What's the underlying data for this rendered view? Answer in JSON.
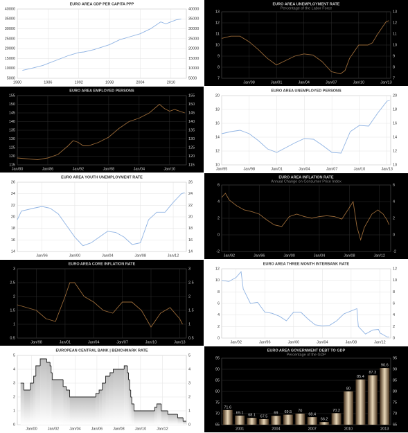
{
  "chart_data": [
    {
      "type": "line",
      "title": "EURO AREA GDP PER CAPITA PPP",
      "background": "#ffffff",
      "color": "#8fb3e3",
      "grid": true,
      "x": [
        1981,
        1983,
        1985,
        1986,
        1988,
        1990,
        1992,
        1993,
        1995,
        1998,
        2000,
        2002,
        2004,
        2006,
        2008,
        2009,
        2010,
        2011,
        2012
      ],
      "values": [
        9000,
        10200,
        11500,
        12500,
        14500,
        16500,
        18000,
        18300,
        19500,
        22000,
        24500,
        26000,
        27500,
        30000,
        33500,
        32500,
        33500,
        34500,
        35000
      ],
      "xlim": [
        1980,
        2013
      ],
      "xticks": [
        1980,
        1986,
        1992,
        1998,
        2004,
        2010
      ],
      "ylim": [
        5000,
        40000
      ],
      "yticks": [
        5000,
        10000,
        15000,
        20000,
        25000,
        30000,
        35000,
        40000
      ]
    },
    {
      "type": "line",
      "title": "EURO AREA UNEMPLOYMENT RATE",
      "subtitle": "Percentage of the Labor Force",
      "background": "#000000",
      "color": "#9a6a38",
      "grid": true,
      "x": [
        1995,
        1996,
        1997,
        1998,
        1999,
        2000,
        2001,
        2002,
        2003,
        2004,
        2005,
        2006,
        2007,
        2008,
        2008.5,
        2009,
        2010,
        2011,
        2011.5,
        2012,
        2012.5,
        2013,
        2013.3
      ],
      "values": [
        10.6,
        10.8,
        10.8,
        10.3,
        9.6,
        8.8,
        8.2,
        8.6,
        9.0,
        9.2,
        9.1,
        8.5,
        7.6,
        7.4,
        7.7,
        8.8,
        10.0,
        10.0,
        10.2,
        10.9,
        11.5,
        12.1,
        12.2
      ],
      "xlim": [
        1995,
        2013.5
      ],
      "xticks": [
        {
          "value": 1998,
          "label": "Jan/98"
        },
        {
          "value": 2001,
          "label": "Jan/01"
        },
        {
          "value": 2004,
          "label": "Jan/04"
        },
        {
          "value": 2007,
          "label": "Jan/07"
        },
        {
          "value": 2010,
          "label": "Jan/10"
        },
        {
          "value": 2013,
          "label": "Jan/13"
        }
      ],
      "ylim": [
        7,
        13
      ],
      "yticks": [
        7,
        8,
        9,
        10,
        11,
        12,
        13
      ]
    },
    {
      "type": "line",
      "title": "EURO AREA EMPLOYED PERSONS",
      "background": "#000000",
      "color": "#9a6a38",
      "grid": true,
      "x": [
        1980,
        1982,
        1984,
        1986,
        1988,
        1990,
        1991,
        1992,
        1993,
        1994,
        1996,
        1998,
        2000,
        2002,
        2004,
        2006,
        2008,
        2009,
        2010,
        2011,
        2012,
        2013
      ],
      "values": [
        119,
        118.5,
        118,
        119,
        121,
        126,
        129,
        128,
        126,
        126,
        128,
        131,
        136,
        140,
        142,
        145,
        150,
        147.5,
        146,
        147,
        146,
        145
      ],
      "xlim": [
        1980,
        2013.3
      ],
      "xticks": [
        {
          "value": 1980,
          "label": "Jan/80"
        },
        {
          "value": 1986,
          "label": "Jan/86"
        },
        {
          "value": 1992,
          "label": "Jan/92"
        },
        {
          "value": 1998,
          "label": "Jan/98"
        },
        {
          "value": 2004,
          "label": "Jan/04"
        },
        {
          "value": 2010,
          "label": "Jan/10"
        }
      ],
      "ylim": [
        115,
        155
      ],
      "yticks": [
        115,
        120,
        125,
        130,
        135,
        140,
        145,
        150,
        155
      ]
    },
    {
      "type": "line",
      "title": "EURO AREA UNEMPLOYED PERSONS",
      "background": "#ffffff",
      "color": "#8fb3e3",
      "grid": true,
      "x": [
        1995,
        1996,
        1997,
        1998,
        1999,
        2000,
        2001,
        2002,
        2003,
        2004,
        2005,
        2006,
        2007,
        2008,
        2009,
        2010,
        2011,
        2012,
        2013,
        2013.3
      ],
      "values": [
        14.5,
        14.8,
        15.0,
        14.5,
        13.5,
        12.3,
        11.8,
        12.5,
        13.2,
        13.8,
        13.7,
        12.8,
        11.8,
        11.7,
        14.8,
        15.7,
        15.6,
        17.5,
        19.2,
        19.3
      ],
      "xlim": [
        1995,
        2013.4
      ],
      "xticks": [
        {
          "value": 1995,
          "label": "Jan/95"
        },
        {
          "value": 1998,
          "label": "Jan/98"
        },
        {
          "value": 2001,
          "label": "Jan/01"
        },
        {
          "value": 2004,
          "label": "Jan/04"
        },
        {
          "value": 2007,
          "label": "Jan/07"
        },
        {
          "value": 2010,
          "label": "Jan/10"
        },
        {
          "value": 2013,
          "label": "Jan/13"
        }
      ],
      "ylim": [
        10,
        20
      ],
      "yticks": [
        10,
        12,
        14,
        16,
        18,
        20
      ]
    },
    {
      "type": "line",
      "title": "EURO AREA YOUTH UNEMPLOYMENT RATE",
      "background": "#ffffff",
      "color": "#8fb3e3",
      "grid": true,
      "x": [
        1993,
        1993.5,
        1995,
        1996,
        1997,
        1998,
        1999,
        2000,
        2001,
        2002,
        2003,
        2004,
        2005,
        2006,
        2007,
        2008,
        2009,
        2010,
        2011,
        2012,
        2013,
        2013.4
      ],
      "values": [
        19.5,
        21,
        21.5,
        21.8,
        21.5,
        20.5,
        18.5,
        16.5,
        15.0,
        15.5,
        16.5,
        17.5,
        17.3,
        16.5,
        15.2,
        15.5,
        19.5,
        20.8,
        20.8,
        22.5,
        24,
        24.2
      ],
      "xlim": [
        1993,
        2013.6
      ],
      "xticks": [
        {
          "value": 1996,
          "label": "Jan/96"
        },
        {
          "value": 2000,
          "label": "Jan/00"
        },
        {
          "value": 2004,
          "label": "Jan/04"
        },
        {
          "value": 2008,
          "label": "Jan/08"
        },
        {
          "value": 2012,
          "label": "Jan/12"
        }
      ],
      "ylim": [
        14,
        26
      ],
      "yticks": [
        14,
        16,
        18,
        20,
        22,
        24,
        26
      ]
    },
    {
      "type": "line",
      "title": "EURO AREA INFLATION RATE",
      "subtitle": "Annual Change on Consumer Price Index",
      "background": "#000000",
      "color": "#9a6a38",
      "grid": true,
      "x": [
        1991,
        1991.5,
        1992,
        1993,
        1994,
        1995,
        1996,
        1997,
        1998,
        1999,
        2000,
        2001,
        2002,
        2003,
        2004,
        2005,
        2006,
        2007,
        2007.8,
        2008.5,
        2009,
        2009.5,
        2010,
        2011,
        2011.8,
        2012.5,
        2013,
        2013.3
      ],
      "values": [
        4.5,
        5,
        4.2,
        3.5,
        3,
        2.8,
        2.5,
        1.8,
        1.2,
        1.0,
        2.2,
        2.5,
        2.2,
        2.0,
        2.2,
        2.3,
        2.2,
        1.9,
        3.0,
        4.0,
        1.0,
        -0.6,
        0.9,
        2.5,
        3.0,
        2.5,
        1.8,
        1.2
      ],
      "xlim": [
        1991,
        2013.5
      ],
      "xticks": [
        {
          "value": 1992,
          "label": "Jan/92"
        },
        {
          "value": 1996,
          "label": "Jan/96"
        },
        {
          "value": 2000,
          "label": "Jan/00"
        },
        {
          "value": 2004,
          "label": "Jan/04"
        },
        {
          "value": 2008,
          "label": "Jan/08"
        },
        {
          "value": 2012,
          "label": "Jan/12"
        }
      ],
      "ylim": [
        -2,
        6
      ],
      "yticks": [
        -2,
        0,
        2,
        4,
        6
      ]
    },
    {
      "type": "line",
      "title": "EURO AREA CORE INFLATION RATE",
      "background": "#000000",
      "color": "#9a6a38",
      "grid": true,
      "x": [
        1996,
        1997,
        1998,
        1999,
        2000,
        2001,
        2001.5,
        2002,
        2003,
        2004,
        2005,
        2006,
        2007,
        2008,
        2009,
        2010,
        2011,
        2012,
        2013,
        2013.3
      ],
      "values": [
        1.7,
        1.6,
        1.5,
        1.2,
        1.1,
        2.0,
        2.5,
        2.5,
        2.0,
        1.8,
        1.5,
        1.4,
        1.8,
        1.8,
        1.5,
        0.9,
        1.4,
        1.6,
        1.2,
        1.0
      ],
      "xlim": [
        1996,
        2013.7
      ],
      "xticks": [
        {
          "value": 1998,
          "label": "Jan/98"
        },
        {
          "value": 2001,
          "label": "Jan/01"
        },
        {
          "value": 2004,
          "label": "Jan/04"
        },
        {
          "value": 2007,
          "label": "Jan/07"
        },
        {
          "value": 2010,
          "label": "Jan/10"
        },
        {
          "value": 2013,
          "label": "Jan/13"
        }
      ],
      "ylim": [
        0.5,
        3
      ],
      "yticks": [
        0.5,
        1,
        1.5,
        2,
        2.5,
        3
      ]
    },
    {
      "type": "line",
      "title": "EURO AREA THREE MONTH INTERBANK RATE",
      "background": "#ffffff",
      "color": "#8fb3e3",
      "grid": true,
      "x": [
        1990,
        1991,
        1992,
        1992.7,
        1993,
        1994,
        1995,
        1996,
        1997,
        1998,
        1999,
        2000,
        2001,
        2002,
        2003,
        2004,
        2005,
        2006,
        2007,
        2008,
        2008.8,
        2009,
        2010,
        2011,
        2011.8,
        2012,
        2013,
        2013.3
      ],
      "values": [
        10,
        9.8,
        10.5,
        11.5,
        8.5,
        6.0,
        6.2,
        4.5,
        4.3,
        3.8,
        3.0,
        4.5,
        4.5,
        3.3,
        2.3,
        2.1,
        2.2,
        3.0,
        4.2,
        4.7,
        5.1,
        2.0,
        0.7,
        1.4,
        1.5,
        0.9,
        0.2,
        0.2
      ],
      "xlim": [
        1990,
        2013.5
      ],
      "xticks": [
        {
          "value": 1992,
          "label": "Jan/92"
        },
        {
          "value": 1996,
          "label": "Jan/96"
        },
        {
          "value": 2000,
          "label": "Jan/00"
        },
        {
          "value": 2004,
          "label": "Jan/04"
        },
        {
          "value": 2008,
          "label": "Jan/08"
        },
        {
          "value": 2012,
          "label": "Jan/12"
        }
      ],
      "ylim": [
        0,
        12
      ],
      "yticks": [
        0,
        2,
        4,
        6,
        8,
        10,
        12
      ]
    },
    {
      "type": "step-area",
      "title": "EUROPEAN CENTRAL BANK | BENCHMARK RATE",
      "background": "#ffffff",
      "color": "#222222",
      "grid": true,
      "x": [
        1999,
        1999.3,
        1999.9,
        2000.2,
        2000.4,
        2000.8,
        2001.4,
        2001.7,
        2001.8,
        2001.9,
        2002.9,
        2003.2,
        2003.5,
        2005.9,
        2006.2,
        2006.5,
        2006.8,
        2007.2,
        2007.5,
        2008.5,
        2008.8,
        2008.9,
        2009.0,
        2009.1,
        2009.2,
        2009.4,
        2011.3,
        2011.5,
        2011.9,
        2012.5,
        2013.4,
        2013.9
      ],
      "values": [
        3.0,
        2.5,
        3.0,
        3.5,
        4.25,
        4.75,
        4.5,
        4.25,
        3.75,
        3.25,
        2.75,
        2.5,
        2.0,
        2.25,
        2.5,
        3.0,
        3.5,
        3.75,
        4.0,
        4.25,
        3.75,
        3.25,
        2.5,
        2.0,
        1.5,
        1.0,
        1.25,
        1.5,
        1.0,
        0.75,
        0.5,
        0.25
      ],
      "xlim": [
        1998.7,
        2014.2
      ],
      "xticks": [
        {
          "value": 2000,
          "label": "Jan/00"
        },
        {
          "value": 2002,
          "label": "Jan/02"
        },
        {
          "value": 2004,
          "label": "Jan/04"
        },
        {
          "value": 2006,
          "label": "Jan/06"
        },
        {
          "value": 2008,
          "label": "Jan/08"
        },
        {
          "value": 2010,
          "label": "Jan/10"
        },
        {
          "value": 2012,
          "label": "Jan/12"
        }
      ],
      "ylim": [
        0,
        5
      ],
      "yticks": [
        0,
        1,
        2,
        3,
        4,
        5
      ]
    },
    {
      "type": "bar",
      "title": "EURO AREA GOVERNMENT DEBT TO GDP",
      "subtitle": "Percentage of the GDP",
      "background": "#000000",
      "color": "#c9b08a",
      "grid": true,
      "categories": [
        null,
        2001,
        null,
        null,
        2004,
        null,
        null,
        2007,
        null,
        null,
        2010,
        null,
        null,
        2013
      ],
      "values": [
        71.6,
        69.1,
        68.1,
        67.5,
        69,
        69.5,
        70,
        68.4,
        66.2,
        70.2,
        80,
        85.4,
        87.3,
        90.6
      ],
      "ylim": [
        65,
        95
      ],
      "yticks": [
        65,
        70,
        75,
        80,
        85,
        90,
        95
      ]
    }
  ]
}
